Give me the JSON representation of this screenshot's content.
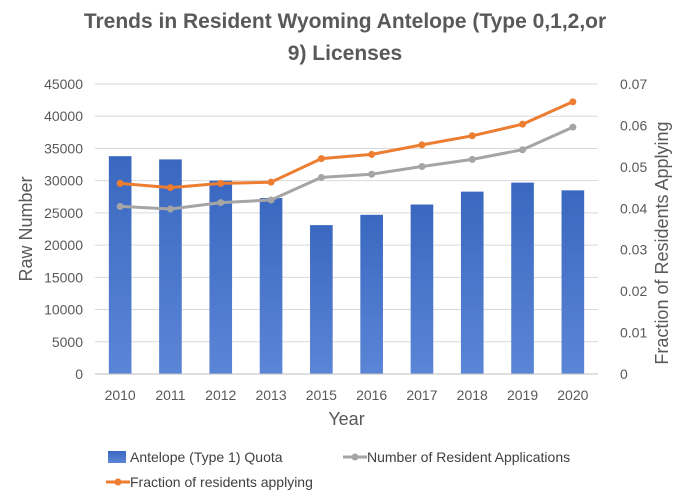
{
  "chart_data": {
    "type": "bar",
    "title": "Trends in Resident Wyoming Antelope (Type 0,1,2,or 9) Licenses",
    "title_lines": [
      "Trends in Resident Wyoming Antelope (Type 0,1,2,or",
      "9) Licenses"
    ],
    "xlabel": "Year",
    "ylabel": "Raw Number",
    "y2label": "Fraction of Residents Applying",
    "categories": [
      "2010",
      "2011",
      "2012",
      "2013",
      "2015",
      "2016",
      "2017",
      "2018",
      "2019",
      "2020"
    ],
    "ylim": [
      0,
      45000
    ],
    "y_ticks": [
      "0",
      "5000",
      "10000",
      "15000",
      "20000",
      "25000",
      "30000",
      "35000",
      "40000",
      "45000"
    ],
    "y2lim": [
      0,
      0.07
    ],
    "y2_ticks": [
      "0",
      "0.01",
      "0.02",
      "0.03",
      "0.04",
      "0.05",
      "0.06",
      "0.07"
    ],
    "grid": true,
    "legend_position": "bottom",
    "series": [
      {
        "name": "Antelope (Type 1) Quota",
        "type": "bar",
        "axis": "left",
        "color": "#4472C4",
        "values": [
          33800,
          33300,
          30000,
          27300,
          23100,
          24700,
          26300,
          28300,
          29700,
          28500
        ]
      },
      {
        "name": "Number of Resident Applications",
        "type": "line",
        "axis": "left",
        "color": "#A5A5A5",
        "values": [
          26000,
          25600,
          26600,
          27000,
          30500,
          31000,
          32200,
          33300,
          34800,
          38300
        ]
      },
      {
        "name": "Fraction of residents applying",
        "type": "line",
        "axis": "right",
        "color": "#ED7D31",
        "values": [
          0.046,
          0.045,
          0.046,
          0.0463,
          0.052,
          0.053,
          0.0553,
          0.0575,
          0.0603,
          0.0657
        ]
      }
    ]
  }
}
